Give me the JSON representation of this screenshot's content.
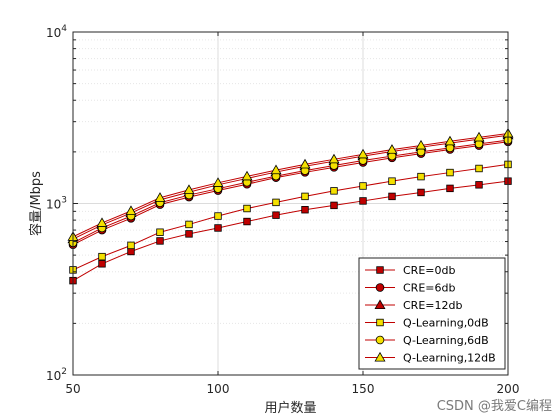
{
  "watermark": "CSDN @我爱C编程",
  "chart_data": {
    "type": "line",
    "xlabel": "用户数量",
    "ylabel": "容量/Mbps",
    "y_scale": "log",
    "xlim": [
      50,
      200
    ],
    "ylim": [
      100,
      10000
    ],
    "x_ticks": [
      50,
      100,
      150,
      200
    ],
    "y_ticks": [
      {
        "value": 100,
        "base": "10",
        "exp": "2"
      },
      {
        "value": 1000,
        "base": "10",
        "exp": "3"
      },
      {
        "value": 10000,
        "base": "10",
        "exp": "4"
      }
    ],
    "grid": true,
    "legend_position": "bottom-right",
    "x": [
      50,
      60,
      70,
      80,
      90,
      100,
      110,
      120,
      130,
      140,
      150,
      160,
      170,
      180,
      190,
      200
    ],
    "series": [
      {
        "name": "CRE=0db",
        "marker": "square",
        "marker_color": "#c00000",
        "line_color": "#c00000",
        "values": [
          355,
          445,
          525,
          605,
          665,
          720,
          785,
          855,
          920,
          975,
          1035,
          1100,
          1160,
          1225,
          1285,
          1350
        ]
      },
      {
        "name": "CRE=6db",
        "marker": "circle",
        "marker_color": "#c00000",
        "line_color": "#c00000",
        "values": [
          575,
          700,
          820,
          985,
          1090,
          1190,
          1295,
          1415,
          1520,
          1625,
          1735,
          1845,
          1955,
          2065,
          2175,
          2290
        ]
      },
      {
        "name": "CRE=12db",
        "marker": "triangle",
        "marker_color": "#c00000",
        "line_color": "#c00000",
        "values": [
          620,
          750,
          880,
          1050,
          1165,
          1285,
          1400,
          1525,
          1650,
          1765,
          1890,
          2010,
          2130,
          2250,
          2375,
          2500
        ]
      },
      {
        "name": "Q-Learning,0dB",
        "marker": "square",
        "marker_color": "#f5e000",
        "line_color": "#c00000",
        "values": [
          410,
          490,
          570,
          680,
          755,
          845,
          935,
          1015,
          1100,
          1185,
          1265,
          1350,
          1435,
          1515,
          1600,
          1690
        ]
      },
      {
        "name": "Q-Learning,6dB",
        "marker": "circle",
        "marker_color": "#f5e000",
        "line_color": "#c00000",
        "values": [
          590,
          720,
          845,
          1010,
          1120,
          1220,
          1330,
          1445,
          1555,
          1665,
          1780,
          1890,
          2000,
          2110,
          2225,
          2340
        ]
      },
      {
        "name": "Q-Learning,12dB",
        "marker": "triangle",
        "marker_color": "#f5e000",
        "line_color": "#c00000",
        "values": [
          640,
          770,
          905,
          1080,
          1200,
          1320,
          1440,
          1565,
          1690,
          1810,
          1935,
          2060,
          2180,
          2305,
          2430,
          2560
        ]
      }
    ]
  }
}
